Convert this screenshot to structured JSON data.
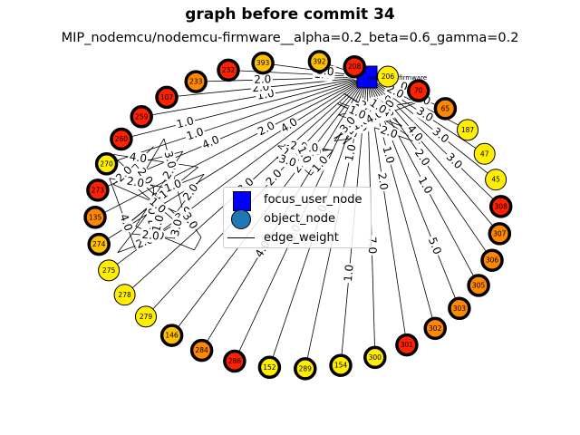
{
  "title": "graph before commit 34",
  "subtitle": "MIP_nodemcu/nodemcu-firmware__alpha=0.2_beta=0.6_gamma=0.2",
  "focus_node_label": "nodemcu-firmware",
  "legend": {
    "focus": "focus_user_node",
    "object": "object_node",
    "edge": "edge_weight"
  },
  "colors": {
    "red": "#ff2200",
    "orange": "#ff8800",
    "yellow": "#ffee00",
    "gold": "#ffc000",
    "focus": "#0000ff",
    "object_legend": "#1f77b4"
  },
  "nodes": [
    {
      "label": "392",
      "color": "gold",
      "thick": true
    },
    {
      "label": "208",
      "color": "red",
      "thick": true
    },
    {
      "label": "206",
      "color": "yellow",
      "thick": false
    },
    {
      "label": "70",
      "color": "red",
      "thick": true
    },
    {
      "label": "65",
      "color": "orange",
      "thick": true
    },
    {
      "label": "187",
      "color": "yellow",
      "thick": false
    },
    {
      "label": "47",
      "color": "yellow",
      "thick": false
    },
    {
      "label": "45",
      "color": "yellow",
      "thick": false
    },
    {
      "label": "308",
      "color": "red",
      "thick": true
    },
    {
      "label": "307",
      "color": "orange",
      "thick": true
    },
    {
      "label": "306",
      "color": "orange",
      "thick": true
    },
    {
      "label": "305",
      "color": "orange",
      "thick": true
    },
    {
      "label": "303",
      "color": "orange",
      "thick": true
    },
    {
      "label": "302",
      "color": "orange",
      "thick": true
    },
    {
      "label": "301",
      "color": "red",
      "thick": true
    },
    {
      "label": "300",
      "color": "yellow",
      "thick": true
    },
    {
      "label": "154",
      "color": "yellow",
      "thick": true
    },
    {
      "label": "289",
      "color": "yellow",
      "thick": true
    },
    {
      "label": "152",
      "color": "yellow",
      "thick": true
    },
    {
      "label": "286",
      "color": "red",
      "thick": true
    },
    {
      "label": "284",
      "color": "orange",
      "thick": true
    },
    {
      "label": "146",
      "color": "gold",
      "thick": true
    },
    {
      "label": "279",
      "color": "yellow",
      "thick": false
    },
    {
      "label": "278",
      "color": "yellow",
      "thick": false
    },
    {
      "label": "275",
      "color": "yellow",
      "thick": false
    },
    {
      "label": "274",
      "color": "gold",
      "thick": true
    },
    {
      "label": "135",
      "color": "orange",
      "thick": true
    },
    {
      "label": "273",
      "color": "red",
      "thick": true
    },
    {
      "label": "270",
      "color": "yellow",
      "thick": true
    },
    {
      "label": "260",
      "color": "red",
      "thick": true
    },
    {
      "label": "259",
      "color": "red",
      "thick": true
    },
    {
      "label": "107",
      "color": "red",
      "thick": true
    },
    {
      "label": "233",
      "color": "orange",
      "thick": true
    },
    {
      "label": "232",
      "color": "red",
      "thick": true
    },
    {
      "label": "393",
      "color": "gold",
      "thick": true
    }
  ],
  "edge_labels": [
    "1.0",
    "2.0",
    "3.0",
    "4.0",
    "5.0",
    "7.0",
    "1.0",
    "2.0",
    "3.0",
    "4.0",
    "1.0",
    "1.0",
    "2.0",
    "3.0",
    "1.0",
    "2.0",
    "1.0",
    "3.0",
    "4.0",
    "5.0",
    "1.0",
    "2.0",
    "1.0",
    "2.0",
    "3.0",
    "1.0",
    "4.0",
    "2.0",
    "1.0",
    "3.0",
    "1.0",
    "2.0",
    "1.0",
    "2.0",
    "5.0",
    "1.0",
    "3.0",
    "2.0",
    "1.0",
    "1.0",
    "3.0",
    "2.0",
    "4.0",
    "1.0",
    "2.0",
    "3.0",
    "1.0",
    "2.0",
    "1.0",
    "2.0",
    "4.0",
    "1.0",
    "3.0",
    "1.0",
    "2.0",
    "1.0",
    "2.0",
    "5.0",
    "3.0",
    "1.0",
    "2.0",
    "1.0",
    "4.0",
    "2.0",
    "1.0",
    "3.0",
    "2.0",
    "1.0",
    "1.0",
    "2.0",
    "3.0",
    "1.0",
    "2.0",
    "1.0",
    "4.0",
    "3.0",
    "2.0",
    "1.0",
    "2.0",
    "1.0"
  ]
}
